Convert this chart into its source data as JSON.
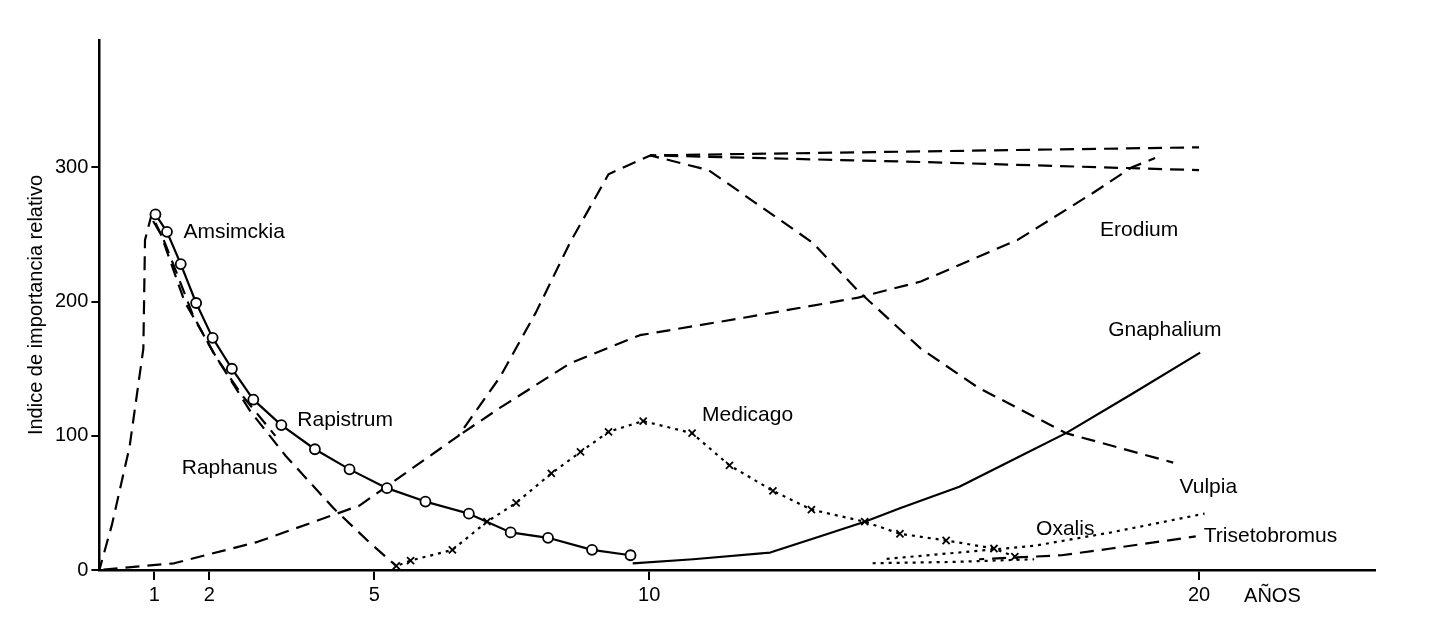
{
  "chart_data": {
    "type": "line",
    "xlabel": "AÑOS",
    "ylabel": "Indice de importancia relativo",
    "xlim": [
      0,
      23.2
    ],
    "ylim": [
      0,
      395
    ],
    "xticks": [
      1,
      2,
      5,
      10,
      20
    ],
    "yticks": [
      0,
      100,
      200,
      300
    ],
    "grid": false,
    "series": [
      {
        "name": "Amsimckia",
        "color": "#000000",
        "line_style": "solid",
        "marker": "circle",
        "x": [
          1.02,
          1.23,
          1.48,
          1.76,
          2.06,
          2.41,
          2.8,
          3.31,
          3.92,
          4.55,
          5.23,
          5.93,
          6.72,
          7.48,
          8.16,
          8.96,
          9.66
        ],
        "values": [
          265,
          252,
          228,
          199,
          173,
          150,
          127,
          108,
          90,
          75,
          61,
          51,
          42,
          28,
          24,
          15,
          11
        ]
      },
      {
        "name": "Raphanus",
        "color": "#000000",
        "line_style": "dashed",
        "marker": "none",
        "x": [
          0,
          0.23,
          0.55,
          0.8,
          0.83,
          0.95,
          1.12,
          1.55,
          2.12,
          2.75,
          3.39,
          4.26,
          4.9,
          5.4
        ],
        "values": [
          0,
          34,
          92,
          165,
          246,
          265,
          250,
          200,
          159,
          118,
          85,
          46,
          21,
          3
        ]
      },
      {
        "name": "Rapistrum",
        "color": "#000000",
        "line_style": "dashed",
        "marker": "none",
        "x": [
          0.95,
          1.15,
          1.4,
          1.7,
          2.1,
          2.6,
          3.2
        ],
        "values": [
          262,
          248,
          222,
          190,
          160,
          130,
          100
        ]
      },
      {
        "name": "Medicago",
        "color": "#000000",
        "line_style": "dotted",
        "marker": "cross",
        "x": [
          5.4,
          5.66,
          6.42,
          7.05,
          7.58,
          8.22,
          8.75,
          9.26,
          9.89,
          10.78,
          11.46,
          12.25,
          12.95,
          13.92,
          14.56,
          15.4,
          16.27,
          16.65
        ],
        "values": [
          3,
          7,
          15,
          36,
          50,
          72,
          88,
          103,
          111,
          102,
          78,
          59,
          45,
          36,
          27,
          22,
          16,
          10
        ]
      },
      {
        "name": "Gnaphalium",
        "color": "#000000",
        "line_style": "solid",
        "marker": "none",
        "x": [
          9.7,
          10.8,
          12.2,
          13.1,
          13.92,
          14.56,
          15.64,
          17.58,
          18.77,
          20.02
        ],
        "values": [
          5,
          8,
          13,
          25,
          36,
          46,
          62,
          102,
          131,
          162
        ]
      },
      {
        "color": "#000000",
        "line_style": "dashed",
        "marker": "none",
        "x": [
          0,
          1.36,
          2.88,
          4.73,
          6.53,
          7.29,
          7.94,
          8.56,
          9.26,
          10.02,
          15,
          20
        ],
        "values": [
          0,
          5,
          21,
          48,
          100,
          144,
          192,
          244,
          295,
          309,
          312,
          315
        ]
      },
      {
        "color": "#000000",
        "line_style": "dashed",
        "marker": "none",
        "x": [
          10.02,
          15,
          20
        ],
        "values": [
          309,
          304,
          298
        ]
      },
      {
        "color": "#000000",
        "line_style": "dashed",
        "marker": "none",
        "x": [
          10.02,
          11.08,
          12.97,
          13.8,
          14.94,
          15.98,
          17.58,
          19.53
        ],
        "values": [
          309,
          298,
          244,
          208,
          165,
          136,
          102,
          80
        ]
      },
      {
        "name": "Erodium",
        "color": "#000000",
        "line_style": "dashed",
        "marker": "none",
        "x": [
          6.53,
          7.29,
          8.56,
          9.83,
          11.72,
          13.8,
          14.94,
          16.7,
          18.07,
          18.77,
          19.2
        ],
        "values": [
          100,
          121,
          154,
          175,
          188,
          203,
          215,
          246,
          281,
          300,
          307
        ]
      },
      {
        "name": "Oxalis",
        "color": "#000000",
        "line_style": "dotted",
        "marker": "none",
        "x": [
          14,
          15.5,
          17
        ],
        "values": [
          5,
          6,
          8
        ]
      },
      {
        "name": "Vulpia",
        "color": "#000000",
        "line_style": "dotted",
        "marker": "none",
        "x": [
          14.24,
          17,
          18.4,
          20.1
        ],
        "values": [
          8,
          18,
          28,
          42
        ]
      },
      {
        "name": "Trisetobromus",
        "color": "#000000",
        "line_style": "dashed",
        "marker": "none",
        "x": [
          16,
          17.5,
          18.4,
          19.94
        ],
        "values": [
          8,
          11,
          16,
          25
        ]
      }
    ]
  }
}
